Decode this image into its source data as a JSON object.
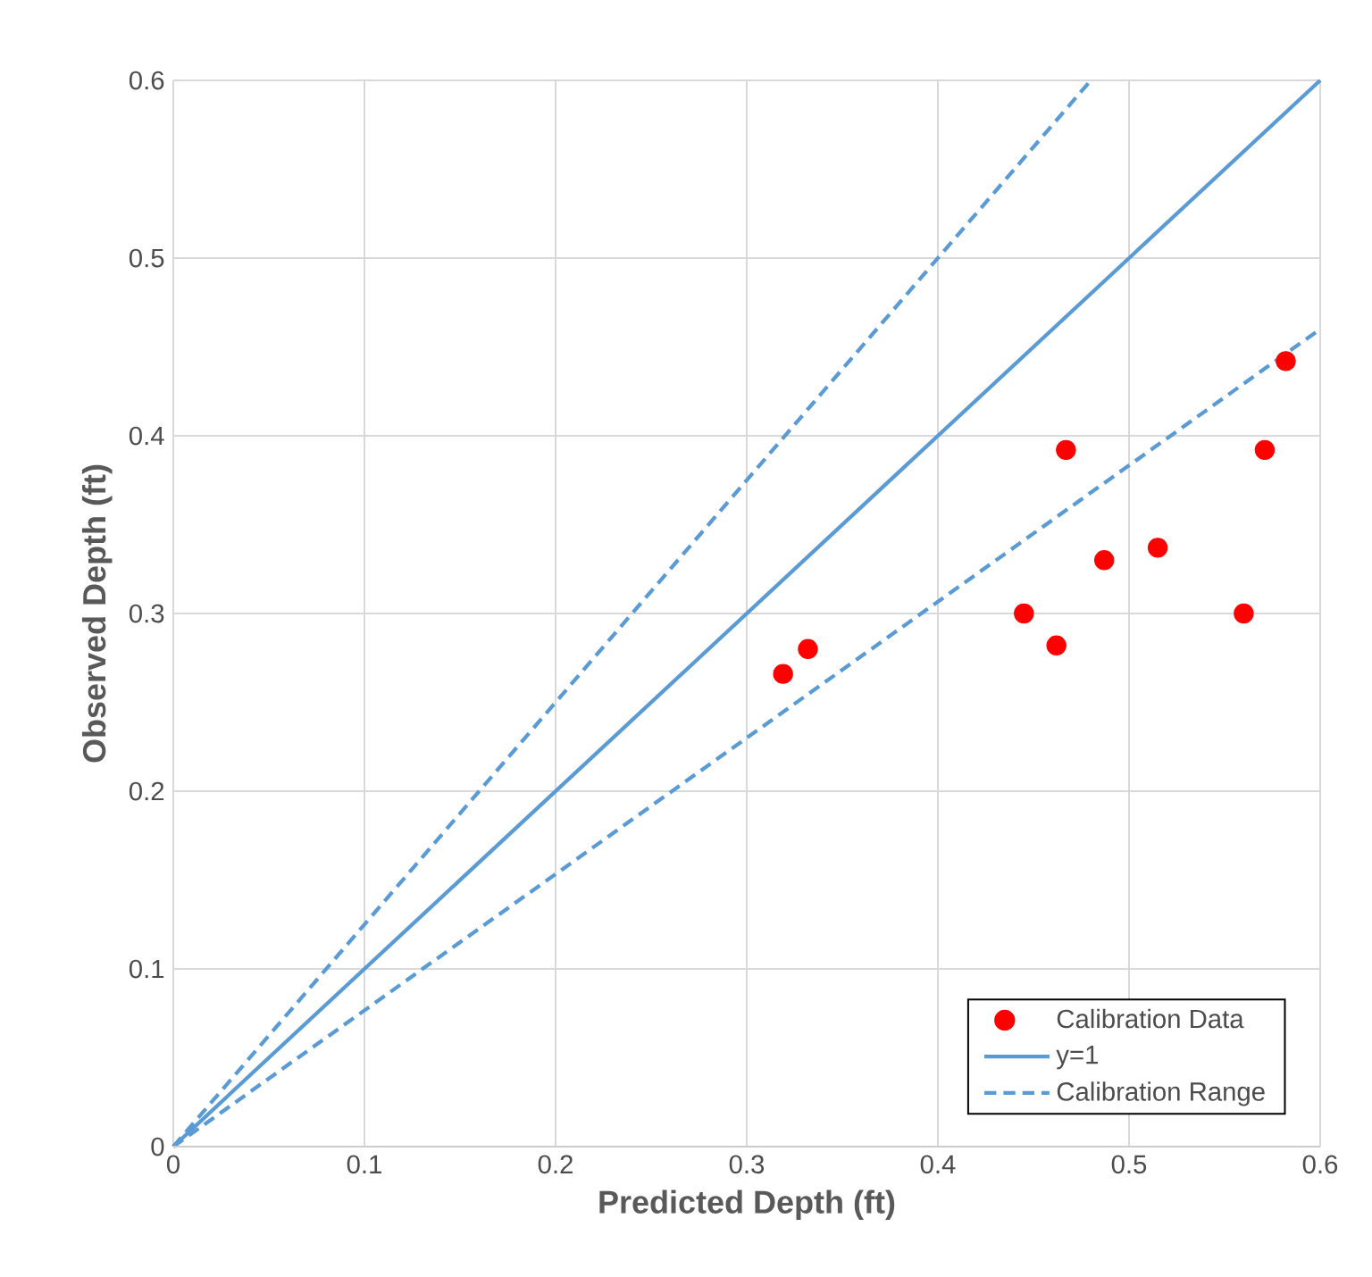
{
  "chart_data": {
    "type": "scatter",
    "xlabel": "Predicted Depth (ft)",
    "ylabel": "Observed  Depth (ft)",
    "xlim": [
      0,
      0.6
    ],
    "ylim": [
      0,
      0.6
    ],
    "xticks": [
      0,
      0.1,
      0.2,
      0.3,
      0.4,
      0.5,
      0.6
    ],
    "yticks": [
      0,
      0.1,
      0.2,
      0.3,
      0.4,
      0.5,
      0.6
    ],
    "grid": true,
    "legend": "bottom right",
    "series": [
      {
        "name": "Calibration Data",
        "type": "scatter",
        "marker": "circle",
        "color": "#ff0000",
        "x": [
          0.319,
          0.332,
          0.445,
          0.467,
          0.462,
          0.487,
          0.515,
          0.56,
          0.571,
          0.582
        ],
        "values": [
          0.266,
          0.28,
          0.3,
          0.392,
          0.282,
          0.33,
          0.337,
          0.3,
          0.392,
          0.442
        ]
      },
      {
        "name": "y=1",
        "type": "line",
        "line_style": "solid",
        "color": "#5b9bd5",
        "x": [
          0,
          0.6
        ],
        "values": [
          0,
          0.6
        ]
      },
      {
        "name": "Calibration Range",
        "type": "line",
        "line_style": "dashed",
        "color": "#5b9bd5",
        "x": [
          0,
          0.48
        ],
        "values": [
          0,
          0.6
        ]
      },
      {
        "type": "line",
        "line_style": "dashed",
        "color": "#5b9bd5",
        "x": [
          0,
          0.6
        ],
        "values": [
          0,
          0.46
        ]
      }
    ]
  }
}
